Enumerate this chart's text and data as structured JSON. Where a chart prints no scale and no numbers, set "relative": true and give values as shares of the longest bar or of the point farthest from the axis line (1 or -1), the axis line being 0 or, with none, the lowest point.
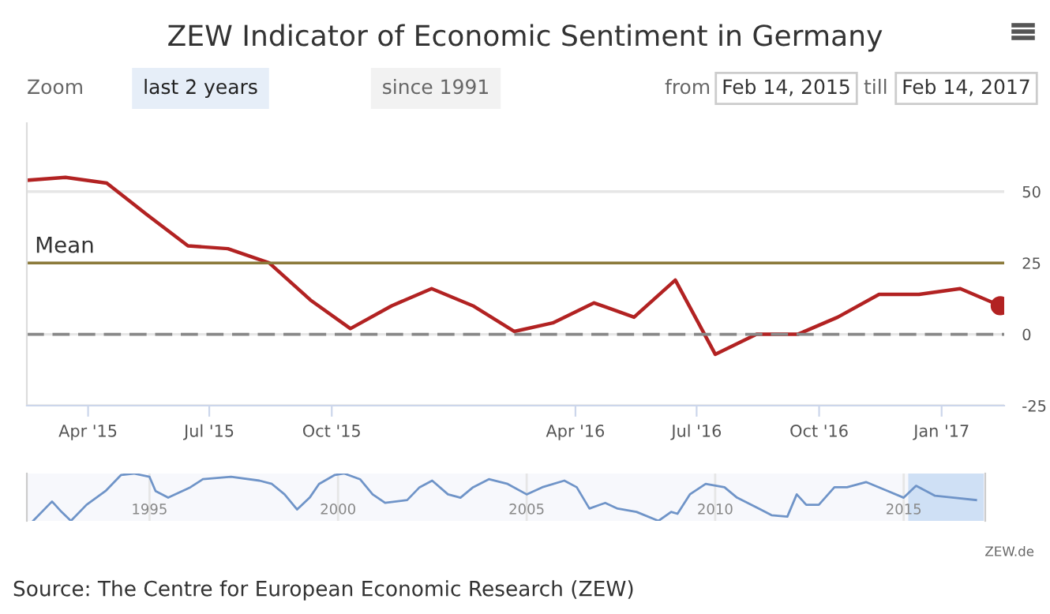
{
  "chart_data": [
    {
      "type": "line",
      "title": "ZEW Indicator of Economic Sentiment in Germany",
      "x": [
        "2015-02-15",
        "2015-03-15",
        "2015-04-15",
        "2015-05-15",
        "2015-06-15",
        "2015-07-15",
        "2015-08-15",
        "2015-09-15",
        "2015-10-15",
        "2015-11-15",
        "2015-12-15",
        "2016-01-15",
        "2016-02-15",
        "2016-03-15",
        "2016-04-15",
        "2016-05-15",
        "2016-06-15",
        "2016-07-15",
        "2016-08-15",
        "2016-09-15",
        "2016-10-15",
        "2016-11-15",
        "2016-12-15",
        "2017-01-15",
        "2017-02-14"
      ],
      "series": [
        {
          "color": "#b22222",
          "values": [
            54,
            55,
            53,
            42,
            31,
            30,
            25,
            12,
            2,
            10,
            16,
            10,
            1,
            4,
            11,
            6,
            19,
            -7,
            0,
            0,
            6,
            14,
            14,
            16,
            10
          ]
        },
        {
          "type": "scatter",
          "color": "#b22222",
          "x": [
            "2017-02-14"
          ],
          "values": [
            10
          ]
        }
      ],
      "xlim": [
        "2015-02-14",
        "2017-02-17"
      ],
      "xticks": [
        {
          "value": "2015-04-01",
          "label": "Apr '15"
        },
        {
          "value": "2015-07-01",
          "label": "Jul '15"
        },
        {
          "value": "2015-10-01",
          "label": "Oct '15"
        },
        {
          "value": "2016-04-01",
          "label": "Apr '16"
        },
        {
          "value": "2016-07-01",
          "label": "Jul '16"
        },
        {
          "value": "2016-10-01",
          "label": "Oct '16"
        },
        {
          "value": "2017-01-01",
          "label": "Jan '17"
        }
      ],
      "ylim": [
        -25,
        74
      ],
      "yticks": [
        -25,
        0,
        25,
        50
      ],
      "grid": "y",
      "ref_lines": [
        {
          "axis": "y",
          "value": 25,
          "label": "Mean",
          "color": "#8b7a3a",
          "line_style": "solid"
        },
        {
          "axis": "y",
          "value": 0,
          "color": "#888888",
          "line_style": "dashed"
        }
      ],
      "annotations": [
        "Zoom",
        "last 2 years",
        "since 1991",
        "from",
        "Feb 14, 2015",
        "till",
        "Feb 14, 2017",
        "ZEW.de",
        "Source: The Centre for European Economic Research (ZEW)"
      ]
    },
    {
      "type": "line",
      "relative": true,
      "x": [
        "1991-12",
        "1992-06",
        "1992-09",
        "1992-12",
        "1993-05",
        "1993-11",
        "1994-04",
        "1994-08",
        "1995-01",
        "1995-03",
        "1995-07",
        "1996-02",
        "1996-06",
        "1997-03",
        "1997-12",
        "1998-04",
        "1998-08",
        "1998-12",
        "1999-04",
        "1999-07",
        "1999-12",
        "2000-03",
        "2000-08",
        "2000-12",
        "2001-04",
        "2001-11",
        "2002-03",
        "2002-07",
        "2002-12",
        "2003-04",
        "2003-08",
        "2004-01",
        "2004-07",
        "2005-01",
        "2005-06",
        "2006-01",
        "2006-05",
        "2006-09",
        "2007-02",
        "2007-06",
        "2007-12",
        "2008-07",
        "2008-11",
        "2009-01",
        "2009-05",
        "2009-10",
        "2010-04",
        "2010-08",
        "2011-03",
        "2011-07",
        "2011-12",
        "2012-03",
        "2012-06",
        "2012-10",
        "2013-03",
        "2013-07",
        "2014-01",
        "2014-08",
        "2015-01",
        "2015-05",
        "2015-11",
        "2016-05",
        "2016-12"
      ],
      "series": [
        {
          "color": "#6f94c8",
          "values": [
            0,
            0.41,
            0.19,
            0,
            0.34,
            0.63,
            0.97,
            1.0,
            0.93,
            0.63,
            0.49,
            0.71,
            0.88,
            0.93,
            0.85,
            0.78,
            0.56,
            0.24,
            0.49,
            0.78,
            0.97,
            1.0,
            0.88,
            0.56,
            0.38,
            0.44,
            0.71,
            0.85,
            0.56,
            0.49,
            0.71,
            0.88,
            0.78,
            0.56,
            0.71,
            0.85,
            0.71,
            0.26,
            0.38,
            0.26,
            0.19,
            0,
            0.19,
            0.15,
            0.56,
            0.78,
            0.71,
            0.49,
            0.26,
            0.12,
            0.09,
            0.56,
            0.34,
            0.34,
            0.71,
            0.71,
            0.82,
            0.63,
            0.49,
            0.74,
            0.53,
            0.49,
            0.44
          ]
        }
      ],
      "xlim": [
        "1991-10",
        "2017-03"
      ],
      "xticks": [
        {
          "value": "1995-01-01",
          "label": "1995"
        },
        {
          "value": "2000-01-01",
          "label": "2000"
        },
        {
          "value": "2005-01-01",
          "label": "2005"
        },
        {
          "value": "2010-01-01",
          "label": "2010"
        },
        {
          "value": "2015-01-01",
          "label": "2015"
        }
      ],
      "grid": "x",
      "bands": [
        {
          "axis": "x",
          "from": "2015-02-14",
          "to": "2017-02-14",
          "color": "#cfe0f5"
        }
      ]
    }
  ]
}
